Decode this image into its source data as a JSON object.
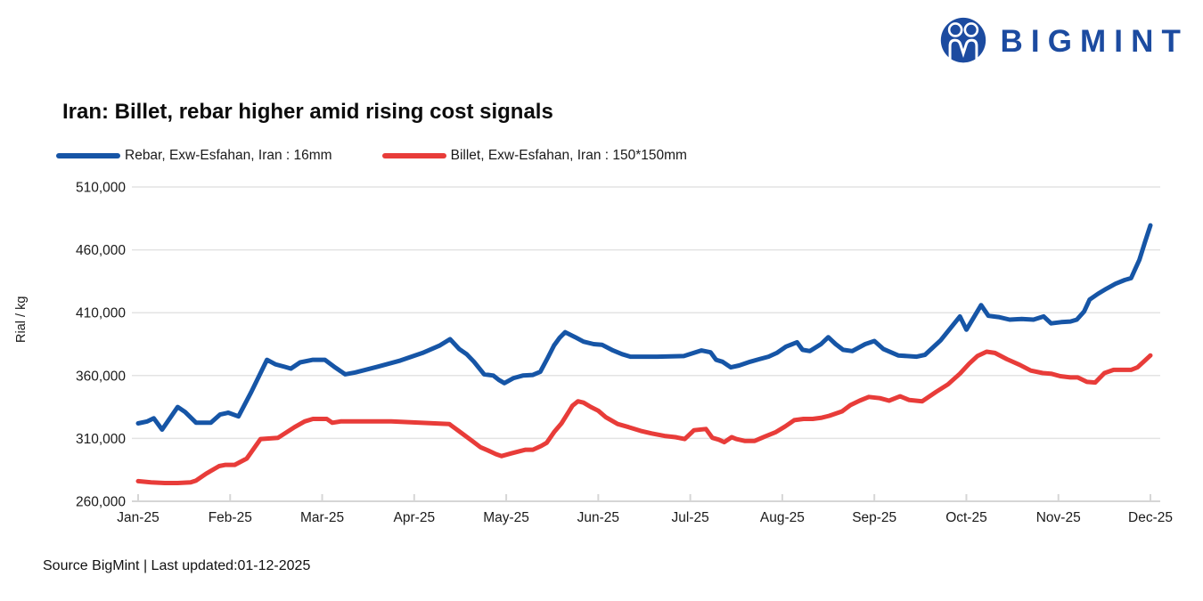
{
  "header": {
    "brand": {
      "name": "BIGMINT",
      "icon": "bigmint-two-people-icon",
      "color": "#1c4ba0"
    }
  },
  "chart_data": {
    "type": "line",
    "title": "Iran: Billet, rebar higher amid rising cost signals",
    "xlabel": "",
    "ylabel": "Rial / kg",
    "ylim": [
      260000,
      510000
    ],
    "y_ticks": [
      260000,
      310000,
      360000,
      410000,
      460000,
      510000
    ],
    "y_tick_labels": [
      "260,000",
      "310,000",
      "360,000",
      "410,000",
      "460,000",
      "510,000"
    ],
    "x_tick_labels": [
      "Jan-25",
      "Feb-25",
      "Mar-25",
      "Apr-25",
      "May-25",
      "Jun-25",
      "Jul-25",
      "Aug-25",
      "Sep-25",
      "Oct-25",
      "Nov-25",
      "Dec-25"
    ],
    "x_unit": "months since Jan-25 tick (0 = Jan-25, 11 = Dec-25)",
    "grid": "horizontal",
    "legend_position": "top-left",
    "colors": {
      "grid": "#e3e3e3",
      "axis": "#d6d6d6",
      "text": "#1a1a1a"
    },
    "series": [
      {
        "name": "Rebar, Exw-Esfahan, Iran : 16mm",
        "color": "#1655a6",
        "points": [
          [
            0.0,
            322000
          ],
          [
            0.1,
            323500
          ],
          [
            0.17,
            326000
          ],
          [
            0.26,
            317000
          ],
          [
            0.43,
            335000
          ],
          [
            0.51,
            331000
          ],
          [
            0.63,
            322500
          ],
          [
            0.79,
            322500
          ],
          [
            0.89,
            329000
          ],
          [
            0.98,
            330500
          ],
          [
            1.09,
            327500
          ],
          [
            1.23,
            347000
          ],
          [
            1.4,
            372500
          ],
          [
            1.49,
            369000
          ],
          [
            1.59,
            367000
          ],
          [
            1.66,
            365500
          ],
          [
            1.76,
            370500
          ],
          [
            1.9,
            372500
          ],
          [
            2.03,
            372500
          ],
          [
            2.13,
            367000
          ],
          [
            2.25,
            361000
          ],
          [
            2.36,
            362500
          ],
          [
            2.6,
            367000
          ],
          [
            2.85,
            372000
          ],
          [
            3.09,
            378000
          ],
          [
            3.28,
            384000
          ],
          [
            3.39,
            389000
          ],
          [
            3.49,
            381000
          ],
          [
            3.57,
            377000
          ],
          [
            3.65,
            371000
          ],
          [
            3.76,
            361000
          ],
          [
            3.86,
            360000
          ],
          [
            3.92,
            356500
          ],
          [
            3.98,
            354000
          ],
          [
            4.08,
            358000
          ],
          [
            4.18,
            360000
          ],
          [
            4.29,
            360500
          ],
          [
            4.37,
            363000
          ],
          [
            4.45,
            374000
          ],
          [
            4.52,
            384000
          ],
          [
            4.58,
            390000
          ],
          [
            4.64,
            394500
          ],
          [
            4.75,
            390500
          ],
          [
            4.84,
            387000
          ],
          [
            4.95,
            385000
          ],
          [
            5.04,
            384500
          ],
          [
            5.16,
            380000
          ],
          [
            5.26,
            377000
          ],
          [
            5.35,
            375000
          ],
          [
            5.64,
            375000
          ],
          [
            5.93,
            375500
          ],
          [
            6.12,
            380000
          ],
          [
            6.22,
            378500
          ],
          [
            6.28,
            372500
          ],
          [
            6.35,
            371000
          ],
          [
            6.44,
            366500
          ],
          [
            6.53,
            368000
          ],
          [
            6.65,
            371000
          ],
          [
            6.75,
            373000
          ],
          [
            6.85,
            375000
          ],
          [
            6.94,
            378000
          ],
          [
            7.04,
            383000
          ],
          [
            7.16,
            386500
          ],
          [
            7.22,
            380500
          ],
          [
            7.3,
            379500
          ],
          [
            7.42,
            385000
          ],
          [
            7.5,
            390500
          ],
          [
            7.58,
            385000
          ],
          [
            7.66,
            380500
          ],
          [
            7.76,
            379500
          ],
          [
            7.9,
            385000
          ],
          [
            8.0,
            387500
          ],
          [
            8.1,
            381000
          ],
          [
            8.26,
            376000
          ],
          [
            8.46,
            375000
          ],
          [
            8.55,
            376500
          ],
          [
            8.72,
            388000
          ],
          [
            8.93,
            407000
          ],
          [
            9.0,
            396500
          ],
          [
            9.16,
            416000
          ],
          [
            9.24,
            407500
          ],
          [
            9.35,
            406500
          ],
          [
            9.47,
            404500
          ],
          [
            9.6,
            405000
          ],
          [
            9.73,
            404500
          ],
          [
            9.84,
            407000
          ],
          [
            9.92,
            401500
          ],
          [
            10.03,
            402500
          ],
          [
            10.13,
            403000
          ],
          [
            10.2,
            404500
          ],
          [
            10.28,
            411000
          ],
          [
            10.34,
            420500
          ],
          [
            10.43,
            425000
          ],
          [
            10.52,
            429000
          ],
          [
            10.62,
            433000
          ],
          [
            10.72,
            436000
          ],
          [
            10.79,
            437500
          ],
          [
            10.88,
            452000
          ],
          [
            10.94,
            466000
          ],
          [
            11.0,
            479500
          ]
        ]
      },
      {
        "name": "Billet, Exw-Esfahan, Iran : 150*150mm",
        "color": "#e83c39",
        "points": [
          [
            0.0,
            276000
          ],
          [
            0.14,
            275000
          ],
          [
            0.29,
            274500
          ],
          [
            0.43,
            274500
          ],
          [
            0.57,
            275000
          ],
          [
            0.63,
            276500
          ],
          [
            0.74,
            282000
          ],
          [
            0.88,
            288000
          ],
          [
            0.95,
            289000
          ],
          [
            1.05,
            289000
          ],
          [
            1.18,
            294000
          ],
          [
            1.33,
            309500
          ],
          [
            1.52,
            310500
          ],
          [
            1.7,
            319000
          ],
          [
            1.81,
            323500
          ],
          [
            1.9,
            325500
          ],
          [
            2.05,
            325500
          ],
          [
            2.11,
            322500
          ],
          [
            2.2,
            323500
          ],
          [
            2.75,
            323500
          ],
          [
            3.38,
            321500
          ],
          [
            3.5,
            315000
          ],
          [
            3.63,
            308000
          ],
          [
            3.72,
            303000
          ],
          [
            3.8,
            300500
          ],
          [
            3.89,
            297500
          ],
          [
            3.95,
            296000
          ],
          [
            4.05,
            298000
          ],
          [
            4.13,
            299500
          ],
          [
            4.21,
            301000
          ],
          [
            4.29,
            301000
          ],
          [
            4.38,
            304000
          ],
          [
            4.44,
            306500
          ],
          [
            4.52,
            315000
          ],
          [
            4.6,
            322000
          ],
          [
            4.66,
            329000
          ],
          [
            4.72,
            336000
          ],
          [
            4.78,
            339500
          ],
          [
            4.84,
            338500
          ],
          [
            4.92,
            335000
          ],
          [
            5.0,
            332000
          ],
          [
            5.08,
            327000
          ],
          [
            5.21,
            321500
          ],
          [
            5.33,
            319000
          ],
          [
            5.46,
            316000
          ],
          [
            5.58,
            314000
          ],
          [
            5.72,
            312000
          ],
          [
            5.84,
            311000
          ],
          [
            5.94,
            309500
          ],
          [
            6.04,
            316500
          ],
          [
            6.17,
            317500
          ],
          [
            6.24,
            310500
          ],
          [
            6.31,
            309000
          ],
          [
            6.37,
            307000
          ],
          [
            6.45,
            311000
          ],
          [
            6.5,
            309500
          ],
          [
            6.59,
            308000
          ],
          [
            6.7,
            308000
          ],
          [
            6.81,
            311500
          ],
          [
            6.93,
            315000
          ],
          [
            7.03,
            319500
          ],
          [
            7.13,
            324500
          ],
          [
            7.23,
            325500
          ],
          [
            7.33,
            325500
          ],
          [
            7.43,
            326500
          ],
          [
            7.51,
            328000
          ],
          [
            7.65,
            331500
          ],
          [
            7.74,
            336500
          ],
          [
            7.84,
            340000
          ],
          [
            7.94,
            343000
          ],
          [
            8.06,
            342000
          ],
          [
            8.16,
            340000
          ],
          [
            8.28,
            343500
          ],
          [
            8.38,
            340500
          ],
          [
            8.52,
            339500
          ],
          [
            8.67,
            347000
          ],
          [
            8.8,
            353000
          ],
          [
            8.93,
            361500
          ],
          [
            9.03,
            369500
          ],
          [
            9.12,
            375500
          ],
          [
            9.22,
            379000
          ],
          [
            9.31,
            378000
          ],
          [
            9.44,
            373000
          ],
          [
            9.58,
            368500
          ],
          [
            9.7,
            364000
          ],
          [
            9.83,
            362000
          ],
          [
            9.92,
            361500
          ],
          [
            10.02,
            359500
          ],
          [
            10.13,
            358500
          ],
          [
            10.21,
            358500
          ],
          [
            10.31,
            355000
          ],
          [
            10.4,
            354500
          ],
          [
            10.5,
            362000
          ],
          [
            10.6,
            364500
          ],
          [
            10.7,
            364500
          ],
          [
            10.79,
            364500
          ],
          [
            10.86,
            366500
          ],
          [
            10.94,
            372000
          ],
          [
            11.0,
            376000
          ]
        ]
      }
    ]
  },
  "footer": {
    "text": "Source BigMint | Last updated:01-12-2025"
  }
}
